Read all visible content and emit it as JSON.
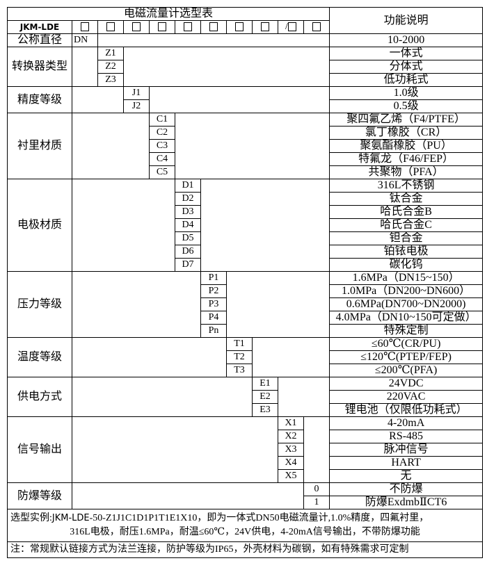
{
  "title": "电磁流量计选型表",
  "function_header": "功能说明",
  "model_prefix": "JKM-LDE",
  "header_boxes": [
    "□",
    "□",
    "□",
    "□",
    "□",
    "□",
    "□",
    "□",
    "/□",
    "□"
  ],
  "sections": [
    {
      "label": "公称直径",
      "col": 0,
      "codes": [
        "DN"
      ],
      "descs": [
        "10-2000"
      ]
    },
    {
      "label": "转换器类型",
      "col": 1,
      "codes": [
        "Z1",
        "Z2",
        "Z3"
      ],
      "descs": [
        "一体式",
        "分体式",
        "低功耗式"
      ]
    },
    {
      "label": "精度等级",
      "col": 2,
      "codes": [
        "J1",
        "J2"
      ],
      "descs": [
        "1.0级",
        "0.5级"
      ]
    },
    {
      "label": "衬里材质",
      "col": 3,
      "codes": [
        "C1",
        "C2",
        "C3",
        "C4",
        "C5"
      ],
      "descs": [
        "聚四氟乙烯（F4/PTFE）",
        "氯丁橡胶（CR）",
        "聚氨酯橡胶（PU）",
        "特氟龙（F46/FEP）",
        "共聚物（PFA）"
      ]
    },
    {
      "label": "电极材质",
      "col": 4,
      "codes": [
        "D1",
        "D2",
        "D3",
        "D4",
        "D5",
        "D6",
        "D7"
      ],
      "descs": [
        "316L不锈钢",
        "钛合金",
        "哈氏合金B",
        "哈氏合金C",
        "钽合金",
        "铂铱电极",
        "碳化钨"
      ]
    },
    {
      "label": "压力等级",
      "col": 5,
      "codes": [
        "P1",
        "P2",
        "P3",
        "P4",
        "Pn"
      ],
      "descs": [
        "1.6MPa（DN15~150）",
        "1.0MPa（DN200~DN600）",
        "0.6MPa(DN700~DN2000)",
        "4.0MPa（DN10~150可定做）",
        "特殊定制"
      ]
    },
    {
      "label": "温度等级",
      "col": 6,
      "codes": [
        "T1",
        "T2",
        "T3"
      ],
      "descs": [
        "≤60℃(CR/PU)",
        "≤120℃(PTEP/FEP)",
        "≤200℃(PFA)"
      ]
    },
    {
      "label": "供电方式",
      "col": 7,
      "codes": [
        "E1",
        "E2",
        "E3"
      ],
      "descs": [
        "24VDC",
        "220VAC",
        "锂电池（仅限低功耗式）"
      ]
    },
    {
      "label": "信号输出",
      "col": 8,
      "codes": [
        "X1",
        "X2",
        "X3",
        "X4",
        "X5"
      ],
      "descs": [
        "4-20mA",
        "RS-485",
        "脉冲信号",
        "HART",
        "无"
      ]
    },
    {
      "label": "防爆等级",
      "col": 9,
      "codes": [
        "0",
        "1"
      ],
      "descs": [
        "不防爆",
        "防爆ExdmbⅡCT6"
      ]
    }
  ],
  "example": {
    "prefix": "选型实例:",
    "model": "JKM-LDE",
    "line1_rest": "-50-Z1J1C1D1P1T1E1X10，即为一体式DN50电磁流量计,1.0%精度，四氟衬里，",
    "line2": "316L电极，耐压1.6MPa，耐温≤60℃，24V供电，4-20mA信号输出，不带防爆功能"
  },
  "note": "注：常规默认链接方式为法兰连接，防护等级为IP65，外壳材料为碳钢，如有特殊需求可定制"
}
